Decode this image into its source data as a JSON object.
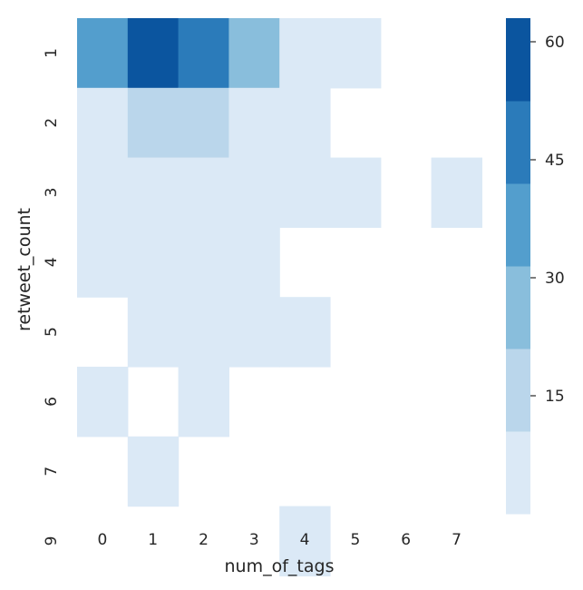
{
  "chart_data": {
    "type": "heatmap",
    "xlabel": "num_of_tags",
    "ylabel": "retweet_count",
    "x_categories": [
      "0",
      "1",
      "2",
      "3",
      "4",
      "5",
      "6",
      "7"
    ],
    "y_categories": [
      "1",
      "2",
      "3",
      "4",
      "5",
      "6",
      "7",
      "9"
    ],
    "values": [
      [
        35,
        62,
        48,
        25,
        3,
        3,
        null,
        null
      ],
      [
        3,
        18,
        18,
        3,
        3,
        null,
        null,
        null
      ],
      [
        3,
        3,
        3,
        3,
        3,
        3,
        null,
        3
      ],
      [
        3,
        3,
        3,
        3,
        null,
        null,
        null,
        null
      ],
      [
        null,
        3,
        3,
        3,
        3,
        null,
        null,
        null
      ],
      [
        3,
        null,
        3,
        null,
        null,
        null,
        null,
        null
      ],
      [
        null,
        3,
        null,
        null,
        null,
        null,
        null,
        null
      ],
      [
        null,
        null,
        null,
        null,
        3,
        null,
        null,
        null
      ]
    ],
    "colorbar": {
      "vmin": 0,
      "vmax": 63,
      "ticks": [
        15,
        30,
        45,
        60
      ],
      "tick_labels": [
        "15",
        "30",
        "45",
        "60"
      ],
      "colors": [
        "#dbe9f6",
        "#bad6eb",
        "#89bedc",
        "#539ecd",
        "#2b7bba",
        "#0b559f"
      ]
    },
    "grid": false,
    "legend": "colorbar-right"
  }
}
